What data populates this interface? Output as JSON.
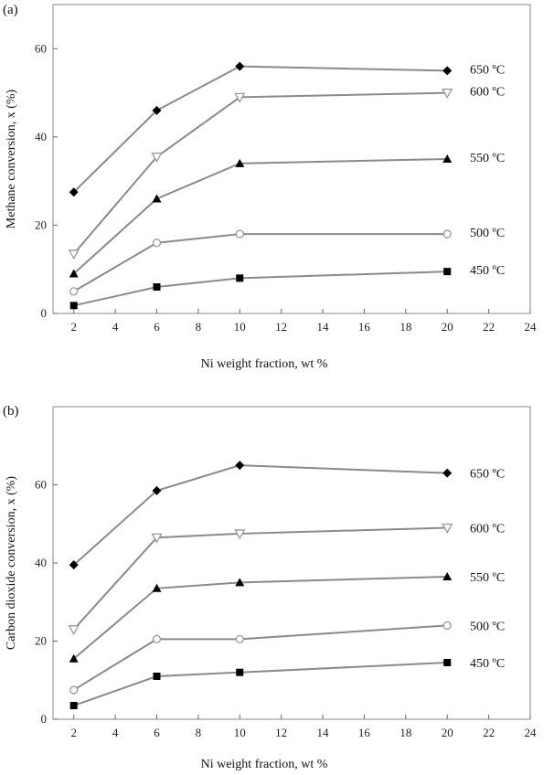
{
  "chart_data": [
    {
      "type": "line",
      "panel_label": "(a)",
      "xlabel": "Ni weight fraction, wt %",
      "ylabel": "Methane conversion, x (%)",
      "xlim": [
        1,
        24
      ],
      "ylim": [
        0,
        70
      ],
      "x_ticks": [
        2,
        4,
        6,
        8,
        10,
        12,
        14,
        16,
        18,
        20,
        22,
        24
      ],
      "y_ticks": [
        0,
        20,
        40,
        60
      ],
      "x": [
        2,
        6,
        10,
        20
      ],
      "series": [
        {
          "name": "650 ºC",
          "marker": "diamond",
          "values": [
            27.5,
            46,
            56,
            55
          ]
        },
        {
          "name": "600 ºC",
          "marker": "triangle-down-open",
          "values": [
            13.5,
            35.5,
            49,
            50
          ]
        },
        {
          "name": "550 ºC",
          "marker": "triangle-up",
          "values": [
            9,
            26,
            34,
            35
          ]
        },
        {
          "name": "500 ºC",
          "marker": "circle-open",
          "values": [
            5,
            16,
            18,
            18
          ]
        },
        {
          "name": "450 ºC",
          "marker": "square",
          "values": [
            1.8,
            6,
            8,
            9.5
          ]
        }
      ]
    },
    {
      "type": "line",
      "panel_label": "(b)",
      "xlabel": "Ni weight fraction, wt %",
      "ylabel": "Carbon dioxide conversion, x (%)",
      "xlim": [
        1,
        24
      ],
      "ylim": [
        0,
        80
      ],
      "x_ticks": [
        2,
        4,
        6,
        8,
        10,
        12,
        14,
        16,
        18,
        20,
        22,
        24
      ],
      "y_ticks": [
        0,
        20,
        40,
        60
      ],
      "x": [
        2,
        6,
        10,
        20
      ],
      "series": [
        {
          "name": "650 ºC",
          "marker": "diamond",
          "values": [
            39.5,
            58.5,
            65,
            63
          ]
        },
        {
          "name": "600 ºC",
          "marker": "triangle-down-open",
          "values": [
            23,
            46.5,
            47.5,
            49
          ]
        },
        {
          "name": "550 ºC",
          "marker": "triangle-up",
          "values": [
            15.5,
            33.5,
            35,
            36.5
          ]
        },
        {
          "name": "500 ºC",
          "marker": "circle-open",
          "values": [
            7.5,
            20.5,
            20.5,
            24
          ]
        },
        {
          "name": "450 ºC",
          "marker": "square",
          "values": [
            3.5,
            11,
            12,
            14.5
          ]
        }
      ]
    }
  ]
}
